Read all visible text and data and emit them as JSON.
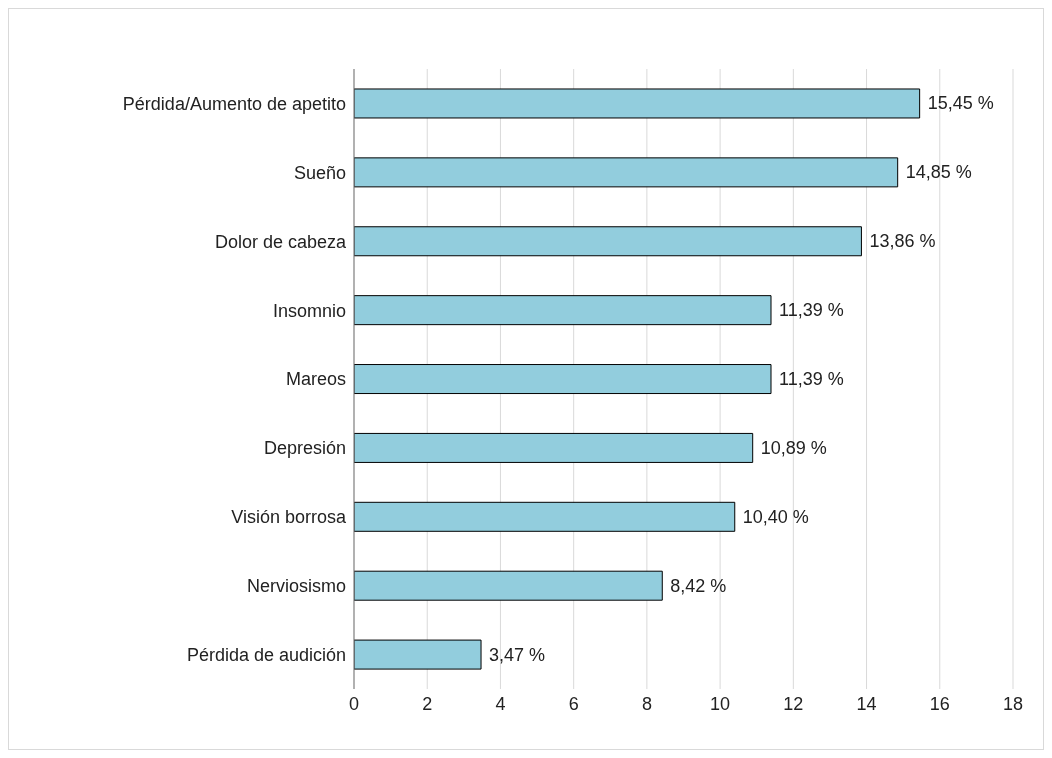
{
  "chart_data": {
    "type": "bar",
    "orientation": "horizontal",
    "categories": [
      "Pérdida/Aumento de apetito",
      "Sueño",
      "Dolor de cabeza",
      "Insomnio",
      "Mareos",
      "Depresión",
      "Visión borrosa",
      "Nerviosismo",
      "Pérdida de audición"
    ],
    "values": [
      15.45,
      14.85,
      13.86,
      11.39,
      11.39,
      10.89,
      10.4,
      8.42,
      3.47
    ],
    "value_labels": [
      "15,45 %",
      "14,85 %",
      "13,86 %",
      "11,39 %",
      "11,39 %",
      "10,89 %",
      "10,40 %",
      "8,42 %",
      "3,47 %"
    ],
    "color": "#92cddd",
    "xlim": [
      0,
      18
    ],
    "xticks": [
      0,
      2,
      4,
      6,
      8,
      10,
      12,
      14,
      16,
      18
    ],
    "grid": "x"
  }
}
